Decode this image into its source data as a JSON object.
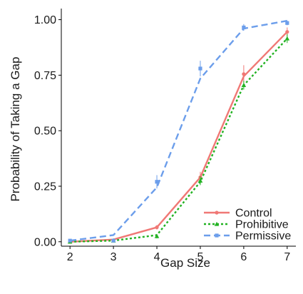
{
  "chart_data": {
    "type": "line",
    "title": "",
    "xlabel": "Gap Size",
    "ylabel": "Probability of Taking a Gap",
    "x": [
      2,
      3,
      4,
      5,
      6,
      7
    ],
    "xlim": [
      1.8,
      7.2
    ],
    "ylim": [
      -0.02,
      1.05
    ],
    "x_ticks": [
      "2",
      "3",
      "4",
      "5",
      "6",
      "7"
    ],
    "y_ticks": [
      {
        "value": 0,
        "label": "0.00"
      },
      {
        "value": 0.25,
        "label": "0.25"
      },
      {
        "value": 0.5,
        "label": "0.50"
      },
      {
        "value": 0.75,
        "label": "0.75"
      },
      {
        "value": 1,
        "label": "1.00"
      }
    ],
    "grid": false,
    "legend_position": "bottom-right",
    "series": [
      {
        "name": "Control",
        "color": "#F07875",
        "dash": "solid",
        "marker": "circle",
        "values": [
          0.0,
          0.01,
          0.065,
          0.29,
          0.745,
          0.945
        ],
        "points": [
          0.0,
          0.005,
          0.065,
          0.29,
          0.755,
          0.945
        ],
        "errors": [
          0.005,
          0.005,
          0.01,
          0.025,
          0.04,
          0.02
        ]
      },
      {
        "name": "Prohibitive",
        "color": "#22B222",
        "dash": "dotted",
        "marker": "triangle",
        "values": [
          0.0,
          0.005,
          0.03,
          0.27,
          0.705,
          0.915
        ],
        "points": [
          0.0,
          0.005,
          0.025,
          0.275,
          0.705,
          0.915
        ],
        "errors": [
          0.005,
          0.005,
          0.01,
          0.02,
          0.02,
          0.02
        ]
      },
      {
        "name": "Permissive",
        "color": "#6C9EEB",
        "dash": "dashed",
        "marker": "square",
        "values": [
          0.005,
          0.03,
          0.245,
          0.735,
          0.96,
          0.995
        ],
        "points": [
          0.005,
          0.005,
          0.27,
          0.78,
          0.965,
          0.985
        ],
        "errors": [
          0.005,
          0.005,
          0.03,
          0.035,
          0.015,
          0.01
        ]
      }
    ]
  }
}
